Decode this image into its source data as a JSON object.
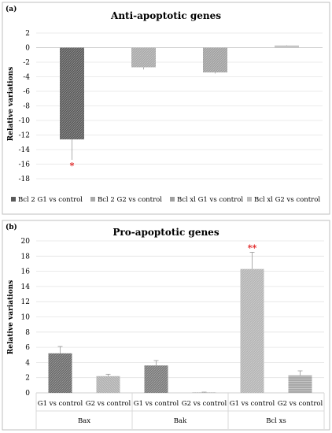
{
  "chart_data": [
    {
      "type": "bar",
      "panel_label": "(a)",
      "title": "Anti-apoptotic genes",
      "ylabel": "Relative variations",
      "ylim": [
        -18,
        2
      ],
      "yticks": [
        "2",
        "0",
        "-2",
        "-4",
        "-6",
        "-8",
        "-10",
        "-12",
        "-14",
        "-16",
        "-18"
      ],
      "grid": true,
      "legend_position": "bottom",
      "categories": [
        "Bcl 2 G1 vs control",
        "Bcl 2 G2 vs control",
        "Bcl xl G1 vs control",
        "Bcl xl G2 vs control"
      ],
      "values": [
        -12.6,
        -2.7,
        -3.4,
        0.3
      ],
      "errors": [
        2.8,
        0.3,
        0.15,
        0.05
      ],
      "colors": [
        "#5a5a5a",
        "#a9a9a9",
        "#a0a0a0",
        "#bdbdbd"
      ],
      "significance": [
        "*",
        "",
        "",
        ""
      ],
      "significance_color": "#e02020"
    },
    {
      "type": "bar",
      "panel_label": "(b)",
      "title": "Pro-apoptotic genes",
      "ylabel": "Relative variations",
      "ylim": [
        0,
        20
      ],
      "yticks": [
        "20",
        "18",
        "16",
        "14",
        "12",
        "10",
        "8",
        "6",
        "4",
        "2",
        "0"
      ],
      "grid": true,
      "groups": [
        "Bax",
        "Bak",
        "Bcl xs"
      ],
      "categories": [
        "G1 vs control",
        "G2 vs control",
        "G1 vs control",
        "G2 vs control",
        "G1 vs control",
        "G2 vs control"
      ],
      "values": [
        5.2,
        2.2,
        3.6,
        0.05,
        16.3,
        2.3
      ],
      "errors": [
        0.9,
        0.25,
        0.65,
        0.05,
        2.2,
        0.6
      ],
      "colors": [
        "#6a6a6a",
        "#b0b0b0",
        "#7a7a7a",
        "#bdbdbd",
        "#b4b4b4",
        "#a8a8a8"
      ],
      "significance": [
        "",
        "",
        "",
        "",
        "**",
        ""
      ],
      "significance_color": "#e02020"
    }
  ]
}
